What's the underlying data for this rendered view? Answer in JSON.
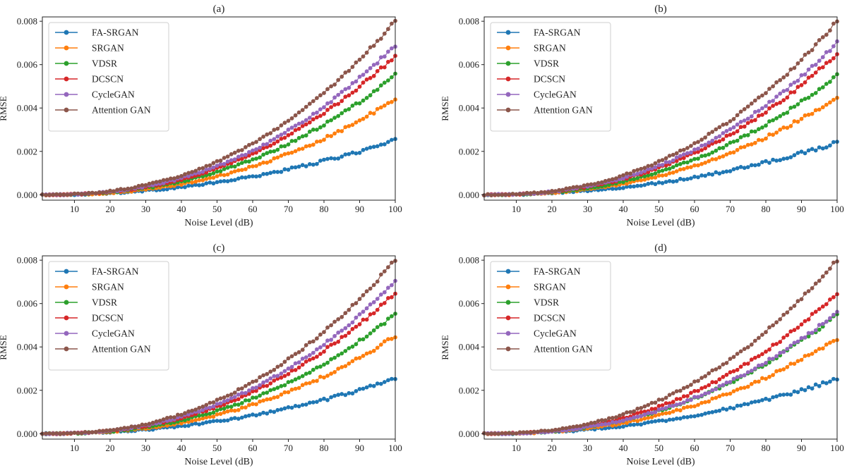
{
  "colors": {
    "FA-SRGAN": "#1f77b4",
    "SRGAN": "#ff7f0e",
    "VDSR": "#2ca02c",
    "DCSCN": "#d62728",
    "CycleGAN": "#9467bd",
    "Attention GAN": "#8c564b"
  },
  "chart_data": [
    {
      "type": "line",
      "title": "(a)",
      "xlabel": "Noise Level (dB)",
      "ylabel": "RMSE",
      "xlim": [
        1,
        100
      ],
      "ylim": [
        -0.00025,
        0.0082
      ],
      "xticks": [
        10,
        20,
        30,
        40,
        50,
        60,
        70,
        80,
        90,
        100
      ],
      "yticks": [
        0.0,
        0.002,
        0.004,
        0.006,
        0.008
      ],
      "ytick_labels": [
        "0.000",
        "0.002",
        "0.004",
        "0.006",
        "0.008"
      ],
      "x": {
        "start": 1,
        "end": 100,
        "step": 1
      },
      "model": "y = end_value * ((x-1)/99)^exponent",
      "legend": "top-left",
      "series": [
        {
          "name": "FA-SRGAN",
          "end_value": 0.0025,
          "exponent": 2.1
        },
        {
          "name": "SRGAN",
          "end_value": 0.0044,
          "exponent": 2.35
        },
        {
          "name": "VDSR",
          "end_value": 0.0055,
          "exponent": 2.35
        },
        {
          "name": "DCSCN",
          "end_value": 0.0064,
          "exponent": 2.35
        },
        {
          "name": "CycleGAN",
          "end_value": 0.0069,
          "exponent": 2.35
        },
        {
          "name": "Attention GAN",
          "end_value": 0.008,
          "exponent": 2.35
        }
      ]
    },
    {
      "type": "line",
      "title": "(b)",
      "xlabel": "Noise Level (dB)",
      "ylabel": "RMSE",
      "xlim": [
        1,
        100
      ],
      "ylim": [
        -0.00025,
        0.0082
      ],
      "xticks": [
        10,
        20,
        30,
        40,
        50,
        60,
        70,
        80,
        90,
        100
      ],
      "yticks": [
        0.0,
        0.002,
        0.004,
        0.006,
        0.008
      ],
      "ytick_labels": [
        "0.000",
        "0.002",
        "0.004",
        "0.006",
        "0.008"
      ],
      "x": {
        "start": 1,
        "end": 100,
        "step": 1
      },
      "model": "y = end_value * ((x-1)/99)^exponent",
      "legend": "top-left",
      "series": [
        {
          "name": "FA-SRGAN",
          "end_value": 0.0024,
          "exponent": 2.1
        },
        {
          "name": "SRGAN",
          "end_value": 0.0045,
          "exponent": 2.35
        },
        {
          "name": "VDSR",
          "end_value": 0.0055,
          "exponent": 2.35
        },
        {
          "name": "DCSCN",
          "end_value": 0.0065,
          "exponent": 2.35
        },
        {
          "name": "CycleGAN",
          "end_value": 0.007,
          "exponent": 2.35
        },
        {
          "name": "Attention GAN",
          "end_value": 0.008,
          "exponent": 2.35
        }
      ]
    },
    {
      "type": "line",
      "title": "(c)",
      "xlabel": "Noise Level (dB)",
      "ylabel": "RMSE",
      "xlim": [
        1,
        100
      ],
      "ylim": [
        -0.00025,
        0.0082
      ],
      "xticks": [
        10,
        20,
        30,
        40,
        50,
        60,
        70,
        80,
        90,
        100
      ],
      "yticks": [
        0.0,
        0.002,
        0.004,
        0.006,
        0.008
      ],
      "ytick_labels": [
        "0.000",
        "0.002",
        "0.004",
        "0.006",
        "0.008"
      ],
      "x": {
        "start": 1,
        "end": 100,
        "step": 1
      },
      "model": "y = end_value * ((x-1)/99)^exponent",
      "legend": "top-left",
      "series": [
        {
          "name": "FA-SRGAN",
          "end_value": 0.0025,
          "exponent": 2.1
        },
        {
          "name": "SRGAN",
          "end_value": 0.0045,
          "exponent": 2.35
        },
        {
          "name": "VDSR",
          "end_value": 0.0055,
          "exponent": 2.35
        },
        {
          "name": "DCSCN",
          "end_value": 0.0065,
          "exponent": 2.35
        },
        {
          "name": "CycleGAN",
          "end_value": 0.007,
          "exponent": 2.35
        },
        {
          "name": "Attention GAN",
          "end_value": 0.008,
          "exponent": 2.35
        }
      ]
    },
    {
      "type": "line",
      "title": "(d)",
      "xlabel": "Noise Level (dB)",
      "ylabel": "RMSE",
      "xlim": [
        1,
        100
      ],
      "ylim": [
        -0.00025,
        0.0082
      ],
      "xticks": [
        10,
        20,
        30,
        40,
        50,
        60,
        70,
        80,
        90,
        100
      ],
      "yticks": [
        0.0,
        0.002,
        0.004,
        0.006,
        0.008
      ],
      "ytick_labels": [
        "0.000",
        "0.002",
        "0.004",
        "0.006",
        "0.008"
      ],
      "x": {
        "start": 1,
        "end": 100,
        "step": 1
      },
      "model": "y = end_value * ((x-1)/99)^exponent",
      "legend": "top-left",
      "series": [
        {
          "name": "FA-SRGAN",
          "end_value": 0.0025,
          "exponent": 2.1
        },
        {
          "name": "SRGAN",
          "end_value": 0.0044,
          "exponent": 2.35
        },
        {
          "name": "VDSR",
          "end_value": 0.0055,
          "exponent": 2.35
        },
        {
          "name": "DCSCN",
          "end_value": 0.0065,
          "exponent": 2.35
        },
        {
          "name": "CycleGAN",
          "end_value": 0.0056,
          "exponent": 2.35
        },
        {
          "name": "Attention GAN",
          "end_value": 0.008,
          "exponent": 2.35
        }
      ]
    }
  ]
}
